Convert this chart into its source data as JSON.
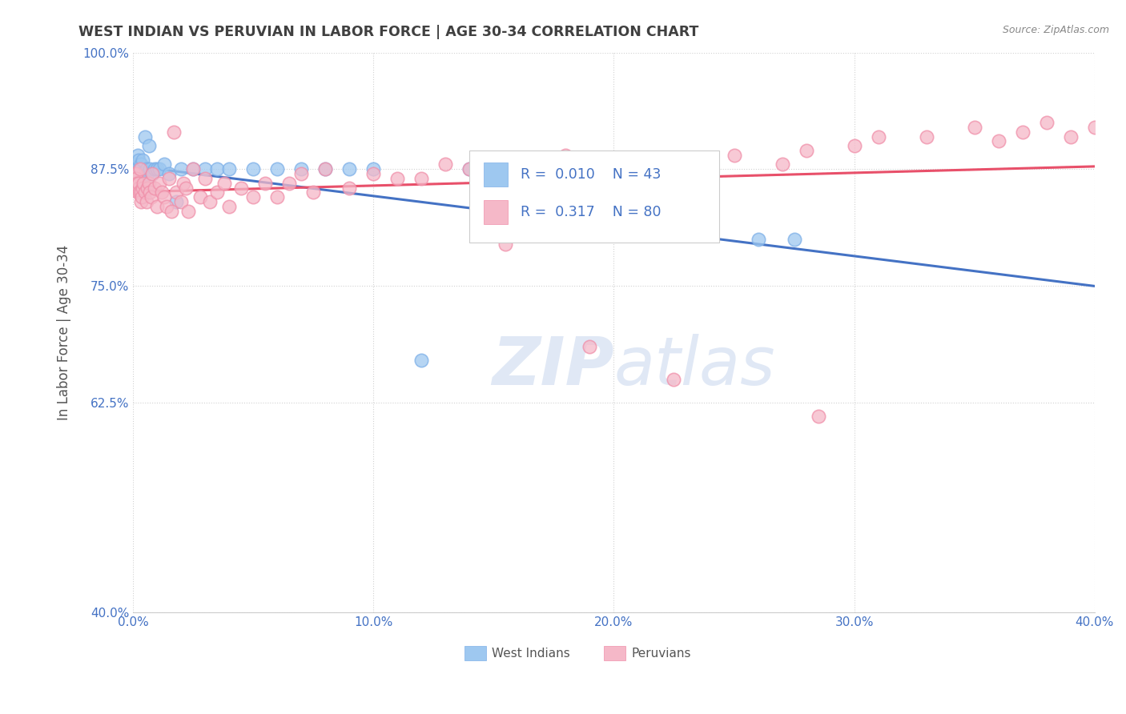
{
  "title": "WEST INDIAN VS PERUVIAN IN LABOR FORCE | AGE 30-34 CORRELATION CHART",
  "source_text": "Source: ZipAtlas.com",
  "ylabel": "In Labor Force | Age 30-34",
  "xlim": [
    0.0,
    40.0
  ],
  "ylim": [
    40.0,
    100.0
  ],
  "xticks": [
    0.0,
    10.0,
    20.0,
    30.0,
    40.0
  ],
  "yticks": [
    40.0,
    62.5,
    75.0,
    87.5,
    100.0
  ],
  "xticklabels": [
    "0.0%",
    "10.0%",
    "20.0%",
    "30.0%",
    "40.0%"
  ],
  "yticklabels": [
    "40.0%",
    "62.5%",
    "75.0%",
    "87.5%",
    "100.0%"
  ],
  "west_indian_color": "#9EC8F0",
  "peruvian_color": "#F5B8C8",
  "west_indian_edge_color": "#7EB0E8",
  "peruvian_edge_color": "#F090AA",
  "west_indian_line_color": "#4472C4",
  "peruvian_line_color": "#E8506A",
  "R_west": 0.01,
  "N_west": 43,
  "R_peru": 0.317,
  "N_peru": 80,
  "west_indian_x": [
    0.05,
    0.08,
    0.1,
    0.12,
    0.15,
    0.18,
    0.2,
    0.22,
    0.25,
    0.28,
    0.3,
    0.32,
    0.35,
    0.38,
    0.4,
    0.45,
    0.5,
    0.55,
    0.6,
    0.65,
    0.7,
    0.8,
    0.9,
    1.0,
    1.1,
    1.3,
    1.5,
    1.8,
    2.0,
    2.5,
    3.0,
    3.5,
    4.0,
    5.0,
    6.0,
    7.0,
    8.0,
    9.0,
    10.0,
    12.0,
    14.0,
    26.0,
    27.5
  ],
  "west_indian_y": [
    87.5,
    86.5,
    88.0,
    87.0,
    87.5,
    87.0,
    89.0,
    86.0,
    88.5,
    87.5,
    87.5,
    88.0,
    87.0,
    86.5,
    88.5,
    87.0,
    91.0,
    87.5,
    87.0,
    90.0,
    87.5,
    87.0,
    87.5,
    87.5,
    87.5,
    88.0,
    87.0,
    84.0,
    87.5,
    87.5,
    87.5,
    87.5,
    87.5,
    87.5,
    87.5,
    87.5,
    87.5,
    87.5,
    87.5,
    67.0,
    87.5,
    80.0,
    80.0
  ],
  "peruvian_x": [
    0.05,
    0.08,
    0.1,
    0.12,
    0.15,
    0.18,
    0.2,
    0.22,
    0.25,
    0.28,
    0.3,
    0.32,
    0.35,
    0.38,
    0.4,
    0.45,
    0.5,
    0.55,
    0.6,
    0.65,
    0.7,
    0.75,
    0.8,
    0.9,
    1.0,
    1.1,
    1.2,
    1.3,
    1.4,
    1.5,
    1.6,
    1.7,
    1.8,
    2.0,
    2.1,
    2.2,
    2.3,
    2.5,
    2.8,
    3.0,
    3.2,
    3.5,
    3.8,
    4.0,
    4.5,
    5.0,
    5.5,
    6.0,
    6.5,
    7.0,
    7.5,
    8.0,
    9.0,
    10.0,
    11.0,
    12.0,
    13.0,
    14.0,
    15.0,
    16.0,
    17.0,
    18.0,
    20.0,
    22.0,
    25.0,
    27.0,
    28.0,
    30.0,
    31.0,
    33.0,
    35.0,
    36.0,
    37.0,
    38.0,
    39.0,
    40.0,
    15.5,
    19.0,
    22.5,
    28.5
  ],
  "peruvian_y": [
    87.0,
    86.0,
    85.5,
    87.0,
    86.5,
    86.0,
    85.0,
    85.5,
    86.0,
    85.0,
    87.5,
    85.0,
    84.0,
    84.5,
    85.5,
    86.0,
    85.0,
    84.0,
    85.5,
    86.0,
    85.0,
    84.5,
    87.0,
    85.5,
    83.5,
    86.0,
    85.0,
    84.5,
    83.5,
    86.5,
    83.0,
    91.5,
    85.0,
    84.0,
    86.0,
    85.5,
    83.0,
    87.5,
    84.5,
    86.5,
    84.0,
    85.0,
    86.0,
    83.5,
    85.5,
    84.5,
    86.0,
    84.5,
    86.0,
    87.0,
    85.0,
    87.5,
    85.5,
    87.0,
    86.5,
    86.5,
    88.0,
    87.5,
    88.5,
    87.5,
    88.0,
    89.0,
    87.5,
    88.5,
    89.0,
    88.0,
    89.5,
    90.0,
    91.0,
    91.0,
    92.0,
    90.5,
    91.5,
    92.5,
    91.0,
    92.0,
    79.5,
    68.5,
    65.0,
    61.0
  ],
  "background_color": "#FFFFFF",
  "grid_color": "#CCCCCC",
  "title_color": "#404040",
  "axis_label_color": "#555555",
  "tick_label_color": "#4472C4",
  "watermark_color": "#E0E8F5",
  "dotted_line_color": "#BBBBBB"
}
